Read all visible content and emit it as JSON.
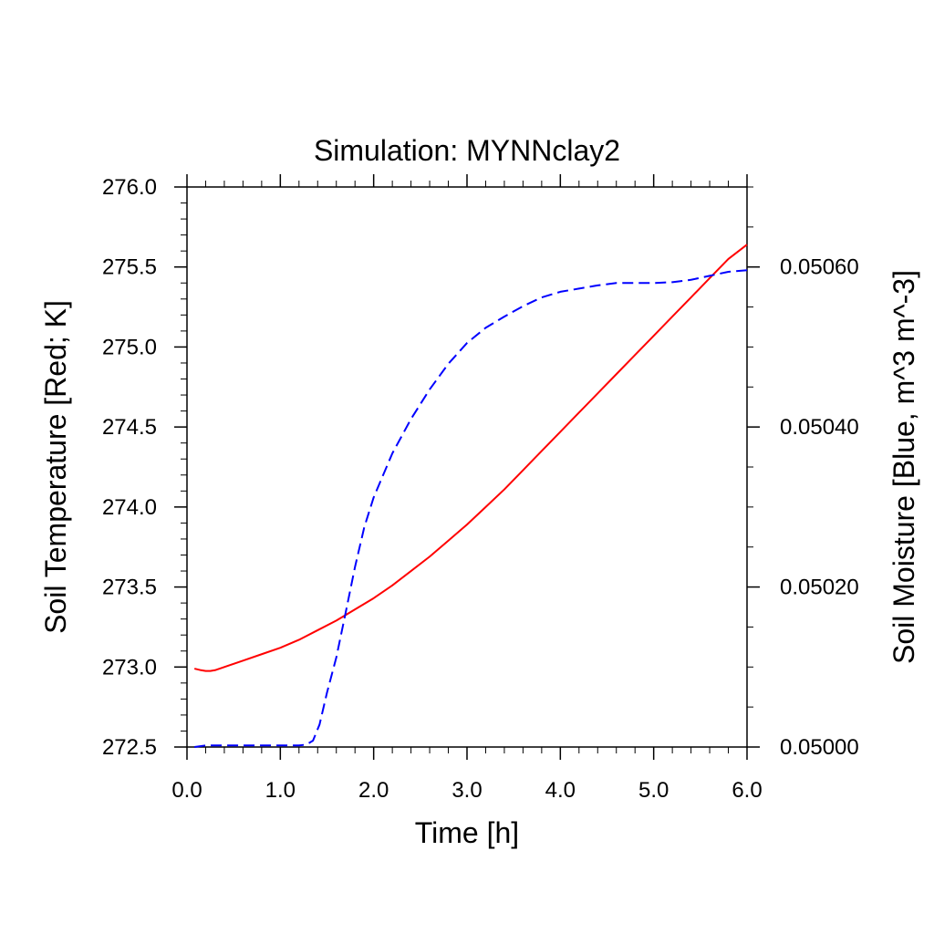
{
  "chart_data": {
    "type": "line",
    "title": "Simulation: MYNNclay2",
    "xlabel": "Time [h]",
    "ylabel": "Soil Temperature [Red; K]",
    "y2label": "Soil Moisture [Blue, m^3 m^-3]",
    "xlim": [
      0.0,
      6.0
    ],
    "ylim": [
      272.5,
      276.0
    ],
    "y2lim": [
      0.05,
      0.0507
    ],
    "xticks": [
      "0.0",
      "1.0",
      "2.0",
      "3.0",
      "4.0",
      "5.0",
      "6.0"
    ],
    "yticks": [
      "272.5",
      "273.0",
      "273.5",
      "274.0",
      "274.5",
      "275.0",
      "275.5",
      "276.0"
    ],
    "y2ticks": [
      "0.05000",
      "0.05020",
      "0.05040",
      "0.05060"
    ],
    "grid": false,
    "legend": "none",
    "series": [
      {
        "axis": "left",
        "color": "#ff0000",
        "style": "solid",
        "x": [
          0.08,
          0.15,
          0.2,
          0.25,
          0.3,
          0.4,
          0.6,
          0.8,
          1.0,
          1.2,
          1.4,
          1.6,
          1.8,
          2.0,
          2.2,
          2.4,
          2.6,
          2.8,
          3.0,
          3.2,
          3.4,
          3.6,
          3.8,
          4.0,
          4.2,
          4.4,
          4.6,
          4.8,
          5.0,
          5.2,
          5.4,
          5.6,
          5.8,
          6.0
        ],
        "values": [
          272.99,
          272.98,
          272.975,
          272.975,
          272.98,
          273.0,
          273.04,
          273.08,
          273.12,
          273.17,
          273.23,
          273.29,
          273.36,
          273.43,
          273.51,
          273.6,
          273.69,
          273.79,
          273.89,
          274.0,
          274.11,
          274.23,
          274.35,
          274.47,
          274.59,
          274.71,
          274.83,
          274.95,
          275.07,
          275.19,
          275.31,
          275.43,
          275.55,
          275.64
        ]
      },
      {
        "axis": "right",
        "color": "#0000ff",
        "style": "dashed",
        "x": [
          0.08,
          0.2,
          0.3,
          0.5,
          0.8,
          1.0,
          1.2,
          1.28,
          1.35,
          1.42,
          1.5,
          1.6,
          1.7,
          1.8,
          1.9,
          2.0,
          2.2,
          2.4,
          2.6,
          2.8,
          3.0,
          3.2,
          3.4,
          3.6,
          3.8,
          4.0,
          4.2,
          4.4,
          4.6,
          4.8,
          5.0,
          5.2,
          5.4,
          5.6,
          5.8,
          6.0
        ],
        "values": [
          0.05,
          0.050002,
          0.050002,
          0.050002,
          0.050002,
          0.050002,
          0.050002,
          0.050003,
          0.050008,
          0.050028,
          0.050068,
          0.050112,
          0.050168,
          0.050225,
          0.050275,
          0.050312,
          0.050367,
          0.05041,
          0.050447,
          0.050479,
          0.050505,
          0.050524,
          0.050538,
          0.050551,
          0.050562,
          0.050569,
          0.050573,
          0.050577,
          0.05058,
          0.05058,
          0.05058,
          0.050581,
          0.050584,
          0.050589,
          0.050594,
          0.050596
        ]
      }
    ]
  }
}
